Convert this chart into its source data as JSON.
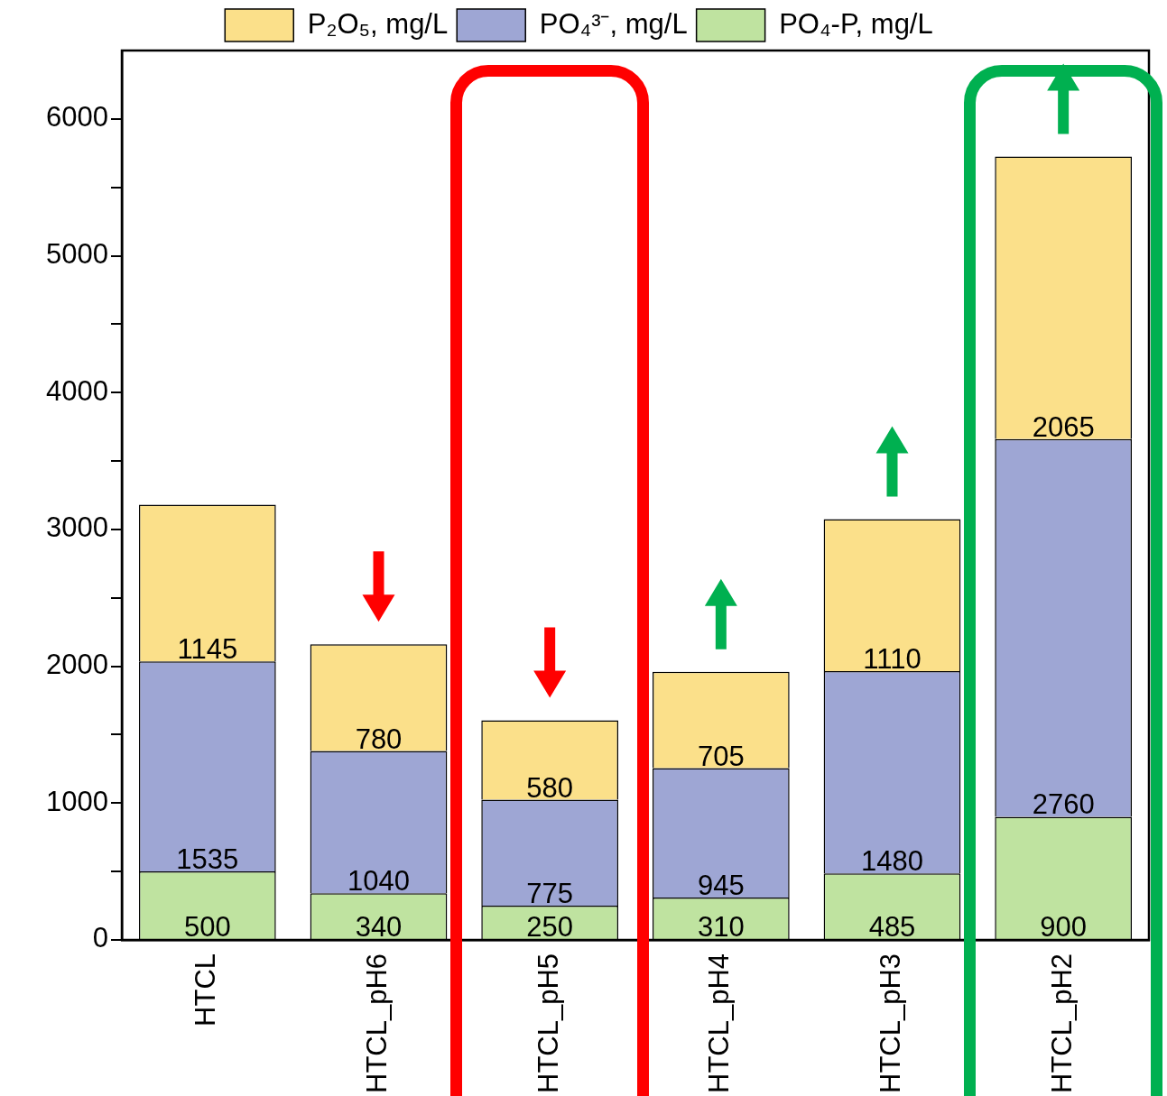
{
  "chart_data": {
    "type": "bar",
    "stacked": true,
    "categories": [
      "HTCL",
      "HTCL_pH6",
      "HTCL_pH5",
      "HTCL_pH4",
      "HTCL_pH3",
      "HTCL_pH2"
    ],
    "series": [
      {
        "name": "PO₄-P, mg/L",
        "color": "#bfe3a0",
        "values": [
          500,
          340,
          250,
          310,
          485,
          900
        ]
      },
      {
        "name": "PO₄³⁻, mg/L",
        "color": "#9ea6d4",
        "values": [
          1535,
          1040,
          775,
          945,
          1480,
          2760
        ]
      },
      {
        "name": "P₂O₅, mg/L",
        "color": "#fbe08a",
        "values": [
          1145,
          780,
          580,
          705,
          1110,
          2065
        ]
      }
    ],
    "ylim": [
      0,
      6500
    ],
    "yticks": [
      0,
      {
        "value": 500,
        "label": null
      },
      1000,
      {
        "value": 1500,
        "label": null
      },
      2000,
      {
        "value": 2500,
        "label": null
      },
      3000,
      {
        "value": 3500,
        "label": null
      },
      4000,
      {
        "value": 4500,
        "label": null
      },
      5000,
      {
        "value": 5500,
        "label": null
      },
      6000
    ],
    "grid": false,
    "legend": "top",
    "data_labels": true
  }
}
